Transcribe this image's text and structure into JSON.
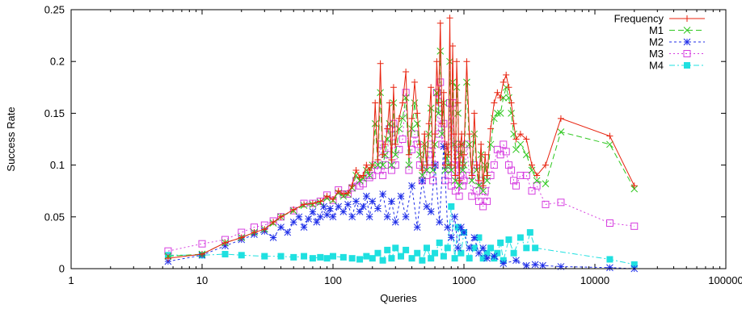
{
  "chart_data": {
    "type": "line",
    "title": "",
    "xlabel": "Queries",
    "ylabel": "Success Rate",
    "xscale": "log",
    "xlim": [
      1,
      100000
    ],
    "ylim": [
      0,
      0.25
    ],
    "x_ticks": [
      1,
      10,
      100,
      1000,
      10000,
      100000
    ],
    "x_tick_labels": [
      "1",
      "10",
      "100",
      "1000",
      "10000",
      "100000"
    ],
    "y_ticks": [
      0,
      0.05,
      0.1,
      0.15,
      0.2,
      0.25
    ],
    "y_tick_labels": [
      "0",
      "0.05",
      "0.1",
      "0.15",
      "0.2",
      "0.25"
    ],
    "legend_position": "top-right",
    "grid": false,
    "series": [
      {
        "name": "Frequency",
        "color": "#e8230f",
        "marker": "plus",
        "dash": "",
        "x": [
          5.5,
          10,
          15,
          20,
          25,
          30,
          35,
          40,
          50,
          60,
          70,
          80,
          90,
          100,
          110,
          120,
          130,
          140,
          150,
          160,
          170,
          180,
          190,
          200,
          210,
          220,
          230,
          240,
          250,
          260,
          270,
          280,
          290,
          300,
          320,
          340,
          360,
          380,
          400,
          420,
          440,
          460,
          480,
          500,
          520,
          540,
          560,
          580,
          600,
          620,
          640,
          660,
          680,
          700,
          720,
          740,
          760,
          780,
          800,
          820,
          840,
          860,
          880,
          900,
          920,
          940,
          960,
          980,
          1000,
          1050,
          1100,
          1150,
          1200,
          1250,
          1300,
          1350,
          1400,
          1450,
          1500,
          1600,
          1700,
          1800,
          1900,
          2000,
          2100,
          2200,
          2300,
          2400,
          2500,
          2700,
          3000,
          3300,
          3600,
          4200,
          5500,
          13000,
          20000
        ],
        "y": [
          0.01,
          0.014,
          0.025,
          0.03,
          0.035,
          0.038,
          0.045,
          0.05,
          0.057,
          0.062,
          0.063,
          0.065,
          0.07,
          0.067,
          0.075,
          0.072,
          0.073,
          0.08,
          0.095,
          0.088,
          0.09,
          0.1,
          0.095,
          0.1,
          0.16,
          0.105,
          0.198,
          0.11,
          0.12,
          0.135,
          0.16,
          0.105,
          0.175,
          0.12,
          0.145,
          0.16,
          0.19,
          0.11,
          0.145,
          0.18,
          0.15,
          0.12,
          0.095,
          0.13,
          0.1,
          0.14,
          0.175,
          0.1,
          0.13,
          0.2,
          0.16,
          0.237,
          0.14,
          0.17,
          0.1,
          0.12,
          0.11,
          0.242,
          0.1,
          0.215,
          0.13,
          0.09,
          0.2,
          0.16,
          0.085,
          0.12,
          0.13,
          0.1,
          0.11,
          0.2,
          0.13,
          0.09,
          0.15,
          0.1,
          0.085,
          0.12,
          0.08,
          0.11,
          0.09,
          0.135,
          0.16,
          0.17,
          0.165,
          0.18,
          0.187,
          0.175,
          0.16,
          0.14,
          0.125,
          0.13,
          0.125,
          0.1,
          0.09,
          0.1,
          0.145,
          0.128,
          0.08
        ]
      },
      {
        "name": "M1",
        "color": "#2ec71f",
        "marker": "x",
        "dash": "7,4",
        "x": [
          5.5,
          10,
          15,
          20,
          25,
          30,
          35,
          40,
          50,
          60,
          70,
          80,
          90,
          100,
          110,
          120,
          130,
          140,
          150,
          160,
          170,
          180,
          190,
          200,
          210,
          220,
          230,
          240,
          250,
          260,
          270,
          280,
          290,
          300,
          320,
          340,
          360,
          380,
          400,
          420,
          440,
          460,
          480,
          500,
          520,
          540,
          560,
          580,
          600,
          620,
          640,
          660,
          680,
          700,
          720,
          740,
          760,
          780,
          800,
          820,
          840,
          860,
          880,
          900,
          920,
          940,
          960,
          980,
          1000,
          1050,
          1100,
          1150,
          1200,
          1250,
          1300,
          1350,
          1400,
          1450,
          1500,
          1600,
          1700,
          1800,
          1900,
          2000,
          2100,
          2200,
          2300,
          2400,
          2500,
          2700,
          3000,
          3300,
          3600,
          4200,
          5500,
          13000,
          20000
        ],
        "y": [
          0.012,
          0.014,
          0.025,
          0.03,
          0.035,
          0.038,
          0.044,
          0.05,
          0.056,
          0.061,
          0.062,
          0.064,
          0.068,
          0.066,
          0.073,
          0.07,
          0.072,
          0.078,
          0.09,
          0.085,
          0.087,
          0.095,
          0.09,
          0.1,
          0.14,
          0.1,
          0.17,
          0.1,
          0.11,
          0.125,
          0.14,
          0.1,
          0.16,
          0.11,
          0.135,
          0.145,
          0.165,
          0.1,
          0.135,
          0.16,
          0.14,
          0.11,
          0.09,
          0.12,
          0.095,
          0.13,
          0.155,
          0.095,
          0.12,
          0.17,
          0.15,
          0.21,
          0.13,
          0.16,
          0.095,
          0.11,
          0.1,
          0.2,
          0.095,
          0.18,
          0.12,
          0.085,
          0.175,
          0.15,
          0.08,
          0.11,
          0.12,
          0.095,
          0.1,
          0.18,
          0.12,
          0.085,
          0.13,
          0.095,
          0.08,
          0.11,
          0.075,
          0.1,
          0.085,
          0.12,
          0.145,
          0.15,
          0.15,
          0.165,
          0.175,
          0.165,
          0.15,
          0.13,
          0.115,
          0.12,
          0.11,
          0.095,
          0.085,
          0.082,
          0.132,
          0.12,
          0.077
        ]
      },
      {
        "name": "M2",
        "color": "#1f2ee8",
        "marker": "star",
        "dash": "3,3",
        "x": [
          5.5,
          10,
          15,
          20,
          25,
          30,
          35,
          40,
          45,
          50,
          55,
          60,
          65,
          70,
          75,
          80,
          85,
          90,
          95,
          100,
          110,
          120,
          130,
          140,
          150,
          160,
          170,
          180,
          190,
          200,
          220,
          240,
          260,
          280,
          300,
          330,
          360,
          400,
          440,
          480,
          520,
          560,
          600,
          650,
          700,
          750,
          800,
          850,
          900,
          950,
          1000,
          1100,
          1200,
          1300,
          1400,
          1500,
          1700,
          2000,
          2500,
          3000,
          3500,
          4000,
          5500,
          13000,
          20000
        ],
        "y": [
          0.007,
          0.013,
          0.022,
          0.028,
          0.033,
          0.036,
          0.03,
          0.04,
          0.035,
          0.045,
          0.05,
          0.04,
          0.048,
          0.055,
          0.045,
          0.05,
          0.06,
          0.052,
          0.058,
          0.05,
          0.06,
          0.055,
          0.062,
          0.05,
          0.065,
          0.055,
          0.06,
          0.07,
          0.05,
          0.065,
          0.058,
          0.072,
          0.05,
          0.065,
          0.045,
          0.07,
          0.05,
          0.08,
          0.04,
          0.085,
          0.06,
          0.055,
          0.1,
          0.045,
          0.118,
          0.04,
          0.03,
          0.05,
          0.02,
          0.04,
          0.035,
          0.02,
          0.03,
          0.015,
          0.02,
          0.01,
          0.012,
          0.005,
          0.008,
          0.003,
          0.004,
          0.003,
          0.002,
          0.001,
          0.0
        ]
      },
      {
        "name": "M3",
        "color": "#d63ee0",
        "marker": "box",
        "dash": "2,3",
        "x": [
          5.5,
          10,
          15,
          20,
          25,
          30,
          35,
          40,
          50,
          60,
          70,
          80,
          90,
          100,
          110,
          120,
          130,
          140,
          150,
          160,
          170,
          180,
          190,
          200,
          210,
          220,
          230,
          240,
          250,
          260,
          270,
          280,
          290,
          300,
          320,
          340,
          360,
          380,
          400,
          420,
          440,
          460,
          480,
          500,
          520,
          540,
          560,
          580,
          600,
          620,
          640,
          660,
          680,
          700,
          720,
          740,
          760,
          780,
          800,
          820,
          840,
          860,
          880,
          900,
          920,
          940,
          960,
          980,
          1000,
          1050,
          1100,
          1150,
          1200,
          1250,
          1300,
          1350,
          1400,
          1450,
          1500,
          1600,
          1700,
          1800,
          1900,
          2000,
          2100,
          2200,
          2300,
          2400,
          2500,
          2700,
          3000,
          3300,
          3600,
          4200,
          5500,
          13000,
          20000
        ],
        "y": [
          0.017,
          0.024,
          0.028,
          0.035,
          0.04,
          0.042,
          0.046,
          0.05,
          0.056,
          0.063,
          0.063,
          0.065,
          0.071,
          0.066,
          0.076,
          0.072,
          0.072,
          0.078,
          0.085,
          0.08,
          0.082,
          0.09,
          0.088,
          0.09,
          0.1,
          0.095,
          0.12,
          0.09,
          0.1,
          0.11,
          0.135,
          0.095,
          0.14,
          0.1,
          0.115,
          0.125,
          0.17,
          0.095,
          0.115,
          0.13,
          0.12,
          0.1,
          0.085,
          0.1,
          0.09,
          0.11,
          0.12,
          0.085,
          0.1,
          0.17,
          0.13,
          0.18,
          0.12,
          0.14,
          0.085,
          0.1,
          0.09,
          0.16,
          0.08,
          0.16,
          0.1,
          0.075,
          0.12,
          0.11,
          0.07,
          0.09,
          0.1,
          0.08,
          0.085,
          0.12,
          0.09,
          0.07,
          0.1,
          0.075,
          0.065,
          0.085,
          0.06,
          0.075,
          0.065,
          0.09,
          0.1,
          0.115,
          0.11,
          0.12,
          0.113,
          0.1,
          0.095,
          0.085,
          0.08,
          0.09,
          0.09,
          0.075,
          0.08,
          0.062,
          0.064,
          0.044,
          0.041
        ]
      },
      {
        "name": "M4",
        "color": "#1fe0e0",
        "marker": "filled-box",
        "dash": "7,3,2,3",
        "x": [
          5.5,
          10,
          15,
          20,
          30,
          40,
          50,
          60,
          70,
          80,
          90,
          100,
          120,
          140,
          160,
          180,
          200,
          220,
          240,
          260,
          280,
          300,
          330,
          360,
          400,
          440,
          480,
          520,
          560,
          600,
          650,
          700,
          750,
          800,
          850,
          900,
          950,
          1000,
          1100,
          1200,
          1300,
          1400,
          1500,
          1600,
          1700,
          1800,
          1900,
          2000,
          2200,
          2400,
          2700,
          3000,
          3200,
          3500,
          13000,
          20000
        ],
        "y": [
          0.013,
          0.013,
          0.014,
          0.013,
          0.012,
          0.012,
          0.011,
          0.012,
          0.01,
          0.011,
          0.01,
          0.012,
          0.011,
          0.01,
          0.009,
          0.012,
          0.01,
          0.015,
          0.008,
          0.018,
          0.01,
          0.02,
          0.012,
          0.018,
          0.01,
          0.015,
          0.008,
          0.02,
          0.01,
          0.015,
          0.025,
          0.012,
          0.02,
          0.06,
          0.01,
          0.04,
          0.015,
          0.035,
          0.01,
          0.02,
          0.03,
          0.01,
          0.015,
          0.02,
          0.01,
          0.015,
          0.025,
          0.008,
          0.028,
          0.015,
          0.03,
          0.02,
          0.035,
          0.02,
          0.009,
          0.004
        ]
      }
    ]
  }
}
